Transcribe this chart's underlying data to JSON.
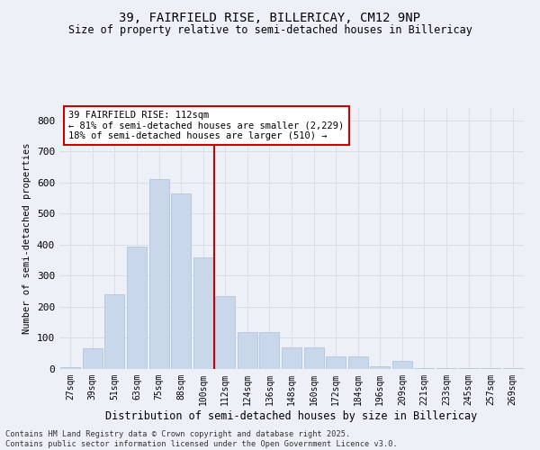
{
  "title": "39, FAIRFIELD RISE, BILLERICAY, CM12 9NP",
  "subtitle": "Size of property relative to semi-detached houses in Billericay",
  "xlabel": "Distribution of semi-detached houses by size in Billericay",
  "ylabel": "Number of semi-detached properties",
  "footer_line1": "Contains HM Land Registry data © Crown copyright and database right 2025.",
  "footer_line2": "Contains public sector information licensed under the Open Government Licence v3.0.",
  "annotation_title": "39 FAIRFIELD RISE: 112sqm",
  "annotation_line2": "← 81% of semi-detached houses are smaller (2,229)",
  "annotation_line3": "18% of semi-detached houses are larger (510) →",
  "property_size": 112,
  "bar_color": "#c8d8ea",
  "bar_edge_color": "#a8c0d8",
  "vline_color": "#cc0000",
  "annotation_box_color": "#ffffff",
  "annotation_box_edge_color": "#cc0000",
  "grid_color": "#d8dfe8",
  "background_color": "#edf1f7",
  "categories": [
    "27sqm",
    "39sqm",
    "51sqm",
    "63sqm",
    "75sqm",
    "88sqm",
    "100sqm",
    "112sqm",
    "124sqm",
    "136sqm",
    "148sqm",
    "160sqm",
    "172sqm",
    "184sqm",
    "196sqm",
    "209sqm",
    "221sqm",
    "233sqm",
    "245sqm",
    "257sqm",
    "269sqm"
  ],
  "values": [
    5,
    68,
    240,
    395,
    610,
    565,
    360,
    235,
    120,
    120,
    70,
    70,
    40,
    40,
    10,
    25,
    3,
    3,
    3,
    3,
    3
  ],
  "ylim": [
    0,
    840
  ],
  "yticks": [
    0,
    100,
    200,
    300,
    400,
    500,
    600,
    700,
    800
  ]
}
